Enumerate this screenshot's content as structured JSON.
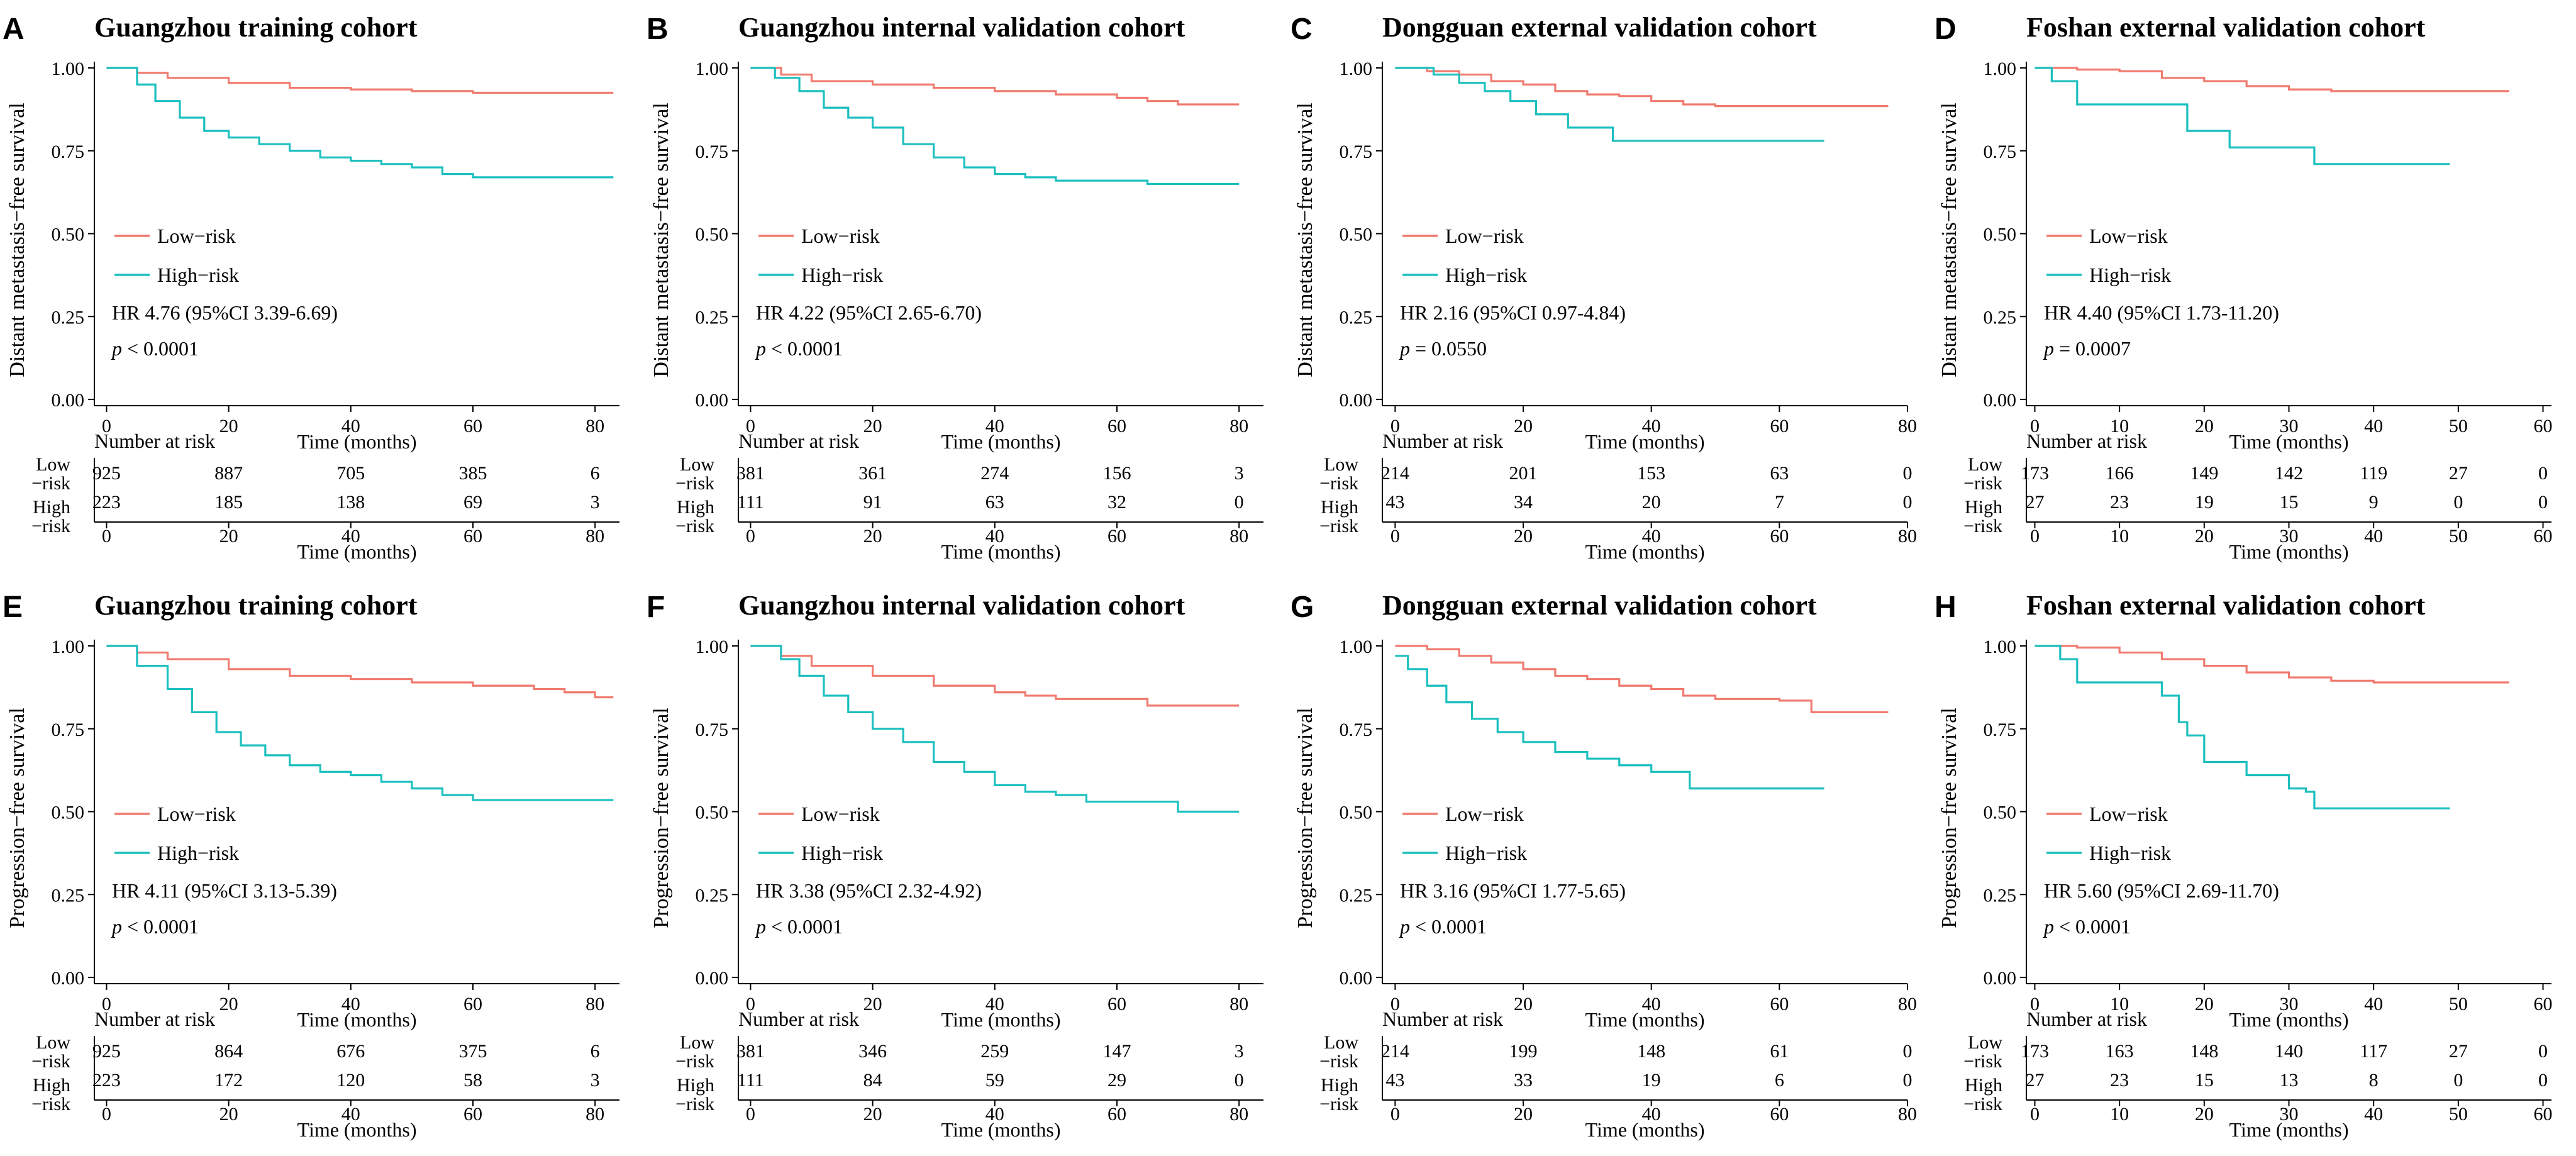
{
  "colors": {
    "low": "#F07A6F",
    "high": "#1BBFBF",
    "axis": "#000000"
  },
  "shared": {
    "legend_low": "Low−risk",
    "legend_high": "High−risk",
    "x_label": "Time (months)",
    "risk_table_title": "Number at risk",
    "risk_row_low": [
      "Low",
      "−risk"
    ],
    "risk_row_high": [
      "High",
      "−risk"
    ],
    "y_ticks": [
      "0.00",
      "0.25",
      "0.50",
      "0.75",
      "1.00"
    ]
  },
  "chart_data": [
    {
      "type": "line",
      "panel": "A",
      "title": "Guangzhou training cohort",
      "ylabel": "Distant metastasis−free survival",
      "xlabel": "Time (months)",
      "xlim": [
        -2,
        84
      ],
      "ylim": [
        0,
        1
      ],
      "xticks": [
        0,
        20,
        40,
        60,
        80
      ],
      "hr_text": "HR 4.76 (95%CI 3.39-6.69)",
      "p_label": "p",
      "p_text": " < 0.0001",
      "series": [
        {
          "name": "Low−risk",
          "x": [
            0,
            5,
            10,
            20,
            30,
            40,
            50,
            60,
            70,
            83
          ],
          "values": [
            1.0,
            0.985,
            0.97,
            0.955,
            0.94,
            0.935,
            0.93,
            0.925,
            0.925,
            0.925
          ]
        },
        {
          "name": "High−risk",
          "x": [
            0,
            5,
            8,
            12,
            16,
            20,
            25,
            30,
            35,
            40,
            45,
            50,
            55,
            60,
            70,
            83
          ],
          "values": [
            1.0,
            0.95,
            0.9,
            0.85,
            0.81,
            0.79,
            0.77,
            0.75,
            0.73,
            0.72,
            0.71,
            0.7,
            0.68,
            0.67,
            0.67,
            0.67
          ]
        }
      ],
      "risk_table": {
        "times": [
          0,
          20,
          40,
          60,
          80
        ],
        "low": [
          "925",
          "887",
          "705",
          "385",
          "6"
        ],
        "high": [
          "223",
          "185",
          "138",
          "69",
          "3"
        ]
      }
    },
    {
      "type": "line",
      "panel": "B",
      "title": "Guangzhou internal validation cohort",
      "ylabel": "Distant metastasis−free survival",
      "xlabel": "Time (months)",
      "xlim": [
        -2,
        84
      ],
      "ylim": [
        0,
        1
      ],
      "xticks": [
        0,
        20,
        40,
        60,
        80
      ],
      "hr_text": "HR 4.22 (95%CI 2.65-6.70)",
      "p_label": "p",
      "p_text": " < 0.0001",
      "series": [
        {
          "name": "Low−risk",
          "x": [
            0,
            5,
            10,
            20,
            30,
            40,
            50,
            60,
            65,
            70,
            80
          ],
          "values": [
            1.0,
            0.98,
            0.96,
            0.95,
            0.94,
            0.93,
            0.92,
            0.91,
            0.9,
            0.89,
            0.89
          ]
        },
        {
          "name": "High−risk",
          "x": [
            0,
            4,
            8,
            12,
            16,
            20,
            25,
            30,
            35,
            40,
            45,
            50,
            60,
            65,
            80
          ],
          "values": [
            1.0,
            0.97,
            0.93,
            0.88,
            0.85,
            0.82,
            0.77,
            0.73,
            0.7,
            0.68,
            0.67,
            0.66,
            0.66,
            0.65,
            0.65
          ]
        }
      ],
      "risk_table": {
        "times": [
          0,
          20,
          40,
          60,
          80
        ],
        "low": [
          "381",
          "361",
          "274",
          "156",
          "3"
        ],
        "high": [
          "111",
          "91",
          "63",
          "32",
          "0"
        ]
      }
    },
    {
      "type": "line",
      "panel": "C",
      "title": "Dongguan external validation cohort",
      "ylabel": "Distant metastasis−free survival",
      "xlabel": "Time (months)",
      "xlim": [
        -2,
        80
      ],
      "ylim": [
        0,
        1
      ],
      "xticks": [
        0,
        20,
        40,
        60,
        80
      ],
      "hr_text": "HR 2.16 (95%CI 0.97-4.84)",
      "p_label": "p",
      "p_text": " = 0.0550",
      "series": [
        {
          "name": "Low−risk",
          "x": [
            0,
            5,
            10,
            15,
            20,
            25,
            30,
            35,
            40,
            45,
            50,
            60,
            77
          ],
          "values": [
            1.0,
            0.99,
            0.98,
            0.96,
            0.95,
            0.93,
            0.92,
            0.915,
            0.9,
            0.89,
            0.885,
            0.885,
            0.885
          ]
        },
        {
          "name": "High−risk",
          "x": [
            0,
            6,
            10,
            14,
            18,
            22,
            27,
            34,
            40,
            50,
            60,
            67
          ],
          "values": [
            1.0,
            0.98,
            0.955,
            0.93,
            0.9,
            0.86,
            0.82,
            0.78,
            0.78,
            0.78,
            0.78,
            0.78
          ]
        }
      ],
      "risk_table": {
        "times": [
          0,
          20,
          40,
          60,
          80
        ],
        "low": [
          "214",
          "201",
          "153",
          "63",
          "0"
        ],
        "high": [
          "43",
          "34",
          "20",
          "7",
          "0"
        ]
      }
    },
    {
      "type": "line",
      "panel": "D",
      "title": "Foshan external validation cohort",
      "ylabel": "Distant metastasis−free survival",
      "xlabel": "Time (months)",
      "xlim": [
        -1,
        61
      ],
      "ylim": [
        0,
        1
      ],
      "xticks": [
        0,
        10,
        20,
        30,
        40,
        50,
        60
      ],
      "hr_text": "HR 4.40 (95%CI 1.73-11.20)",
      "p_label": "p",
      "p_text": " = 0.0007",
      "series": [
        {
          "name": "Low−risk",
          "x": [
            0,
            5,
            10,
            15,
            20,
            25,
            30,
            35,
            40,
            45,
            50,
            56
          ],
          "values": [
            1.0,
            0.995,
            0.99,
            0.97,
            0.96,
            0.945,
            0.935,
            0.93,
            0.93,
            0.93,
            0.93,
            0.93
          ]
        },
        {
          "name": "High−risk",
          "x": [
            0,
            2,
            5,
            10,
            18,
            23,
            33,
            40,
            49
          ],
          "values": [
            1.0,
            0.96,
            0.89,
            0.89,
            0.81,
            0.76,
            0.71,
            0.71,
            0.71
          ]
        }
      ],
      "risk_table": {
        "times": [
          0,
          10,
          20,
          30,
          40,
          50,
          60
        ],
        "low": [
          "173",
          "166",
          "149",
          "142",
          "119",
          "27",
          "0"
        ],
        "high": [
          "27",
          "23",
          "19",
          "15",
          "9",
          "0",
          "0"
        ]
      }
    },
    {
      "type": "line",
      "panel": "E",
      "title": "Guangzhou training cohort",
      "ylabel": "Progression−free survival",
      "xlabel": "Time (months)",
      "xlim": [
        -2,
        84
      ],
      "ylim": [
        0,
        1
      ],
      "xticks": [
        0,
        20,
        40,
        60,
        80
      ],
      "hr_text": "HR 4.11 (95%CI 3.13-5.39)",
      "p_label": "p",
      "p_text": " < 0.0001",
      "series": [
        {
          "name": "Low−risk",
          "x": [
            0,
            5,
            10,
            20,
            30,
            40,
            50,
            60,
            70,
            75,
            80,
            83
          ],
          "values": [
            1.0,
            0.98,
            0.96,
            0.93,
            0.91,
            0.9,
            0.89,
            0.88,
            0.87,
            0.86,
            0.845,
            0.845
          ]
        },
        {
          "name": "High−risk",
          "x": [
            0,
            5,
            10,
            14,
            18,
            22,
            26,
            30,
            35,
            40,
            45,
            50,
            55,
            60,
            70,
            83
          ],
          "values": [
            1.0,
            0.94,
            0.87,
            0.8,
            0.74,
            0.7,
            0.67,
            0.64,
            0.62,
            0.61,
            0.59,
            0.57,
            0.55,
            0.535,
            0.535,
            0.535
          ]
        }
      ],
      "risk_table": {
        "times": [
          0,
          20,
          40,
          60,
          80
        ],
        "low": [
          "925",
          "864",
          "676",
          "375",
          "6"
        ],
        "high": [
          "223",
          "172",
          "120",
          "58",
          "3"
        ]
      }
    },
    {
      "type": "line",
      "panel": "F",
      "title": "Guangzhou internal validation cohort",
      "ylabel": "Progression−free survival",
      "xlabel": "Time (months)",
      "xlim": [
        -2,
        84
      ],
      "ylim": [
        0,
        1
      ],
      "xticks": [
        0,
        20,
        40,
        60,
        80
      ],
      "hr_text": "HR 3.38 (95%CI 2.32-4.92)",
      "p_label": "p",
      "p_text": " < 0.0001",
      "series": [
        {
          "name": "Low−risk",
          "x": [
            0,
            5,
            10,
            20,
            30,
            40,
            45,
            50,
            60,
            65,
            80
          ],
          "values": [
            1.0,
            0.97,
            0.94,
            0.91,
            0.88,
            0.86,
            0.85,
            0.84,
            0.84,
            0.82,
            0.82
          ]
        },
        {
          "name": "High−risk",
          "x": [
            0,
            5,
            8,
            12,
            16,
            20,
            25,
            30,
            35,
            40,
            45,
            50,
            55,
            60,
            70,
            80
          ],
          "values": [
            1.0,
            0.96,
            0.91,
            0.85,
            0.8,
            0.75,
            0.71,
            0.65,
            0.62,
            0.58,
            0.56,
            0.55,
            0.53,
            0.53,
            0.5,
            0.5
          ]
        }
      ],
      "risk_table": {
        "times": [
          0,
          20,
          40,
          60,
          80
        ],
        "low": [
          "381",
          "346",
          "259",
          "147",
          "3"
        ],
        "high": [
          "111",
          "84",
          "59",
          "29",
          "0"
        ]
      }
    },
    {
      "type": "line",
      "panel": "G",
      "title": "Dongguan external validation cohort",
      "ylabel": "Progression−free survival",
      "xlabel": "Time (months)",
      "xlim": [
        -2,
        80
      ],
      "ylim": [
        0,
        1
      ],
      "xticks": [
        0,
        20,
        40,
        60,
        80
      ],
      "hr_text": "HR 3.16 (95%CI 1.77-5.65)",
      "p_label": "p",
      "p_text": " < 0.0001",
      "series": [
        {
          "name": "Low−risk",
          "x": [
            0,
            5,
            10,
            15,
            20,
            25,
            30,
            35,
            40,
            45,
            50,
            60,
            65,
            77
          ],
          "values": [
            1.0,
            0.99,
            0.97,
            0.95,
            0.93,
            0.91,
            0.9,
            0.88,
            0.87,
            0.85,
            0.84,
            0.835,
            0.8,
            0.8
          ]
        },
        {
          "name": "High−risk",
          "x": [
            0,
            2,
            5,
            8,
            12,
            16,
            20,
            25,
            30,
            35,
            40,
            46,
            55,
            67
          ],
          "values": [
            0.97,
            0.93,
            0.88,
            0.83,
            0.78,
            0.74,
            0.71,
            0.68,
            0.66,
            0.64,
            0.62,
            0.57,
            0.57,
            0.57
          ]
        }
      ],
      "risk_table": {
        "times": [
          0,
          20,
          40,
          60,
          80
        ],
        "low": [
          "214",
          "199",
          "148",
          "61",
          "0"
        ],
        "high": [
          "43",
          "33",
          "19",
          "6",
          "0"
        ]
      }
    },
    {
      "type": "line",
      "panel": "H",
      "title": "Foshan external validation cohort",
      "ylabel": "Progression−free survival",
      "xlabel": "Time (months)",
      "xlim": [
        -1,
        61
      ],
      "ylim": [
        0,
        1
      ],
      "xticks": [
        0,
        10,
        20,
        30,
        40,
        50,
        60
      ],
      "hr_text": "HR 5.60 (95%CI 2.69-11.70)",
      "p_label": "p",
      "p_text": " < 0.0001",
      "series": [
        {
          "name": "Low−risk",
          "x": [
            0,
            5,
            10,
            15,
            20,
            25,
            30,
            35,
            40,
            45,
            50,
            56
          ],
          "values": [
            1.0,
            0.995,
            0.98,
            0.96,
            0.94,
            0.92,
            0.905,
            0.895,
            0.89,
            0.89,
            0.89,
            0.89
          ]
        },
        {
          "name": "High−risk",
          "x": [
            0,
            3,
            5,
            10,
            15,
            17,
            18,
            20,
            25,
            30,
            32,
            33,
            40,
            49
          ],
          "values": [
            1.0,
            0.96,
            0.89,
            0.89,
            0.85,
            0.77,
            0.73,
            0.65,
            0.61,
            0.57,
            0.56,
            0.51,
            0.51,
            0.51
          ]
        }
      ],
      "risk_table": {
        "times": [
          0,
          10,
          20,
          30,
          40,
          50,
          60
        ],
        "low": [
          "173",
          "163",
          "148",
          "140",
          "117",
          "27",
          "0"
        ],
        "high": [
          "27",
          "23",
          "15",
          "13",
          "8",
          "0",
          "0"
        ]
      }
    }
  ]
}
